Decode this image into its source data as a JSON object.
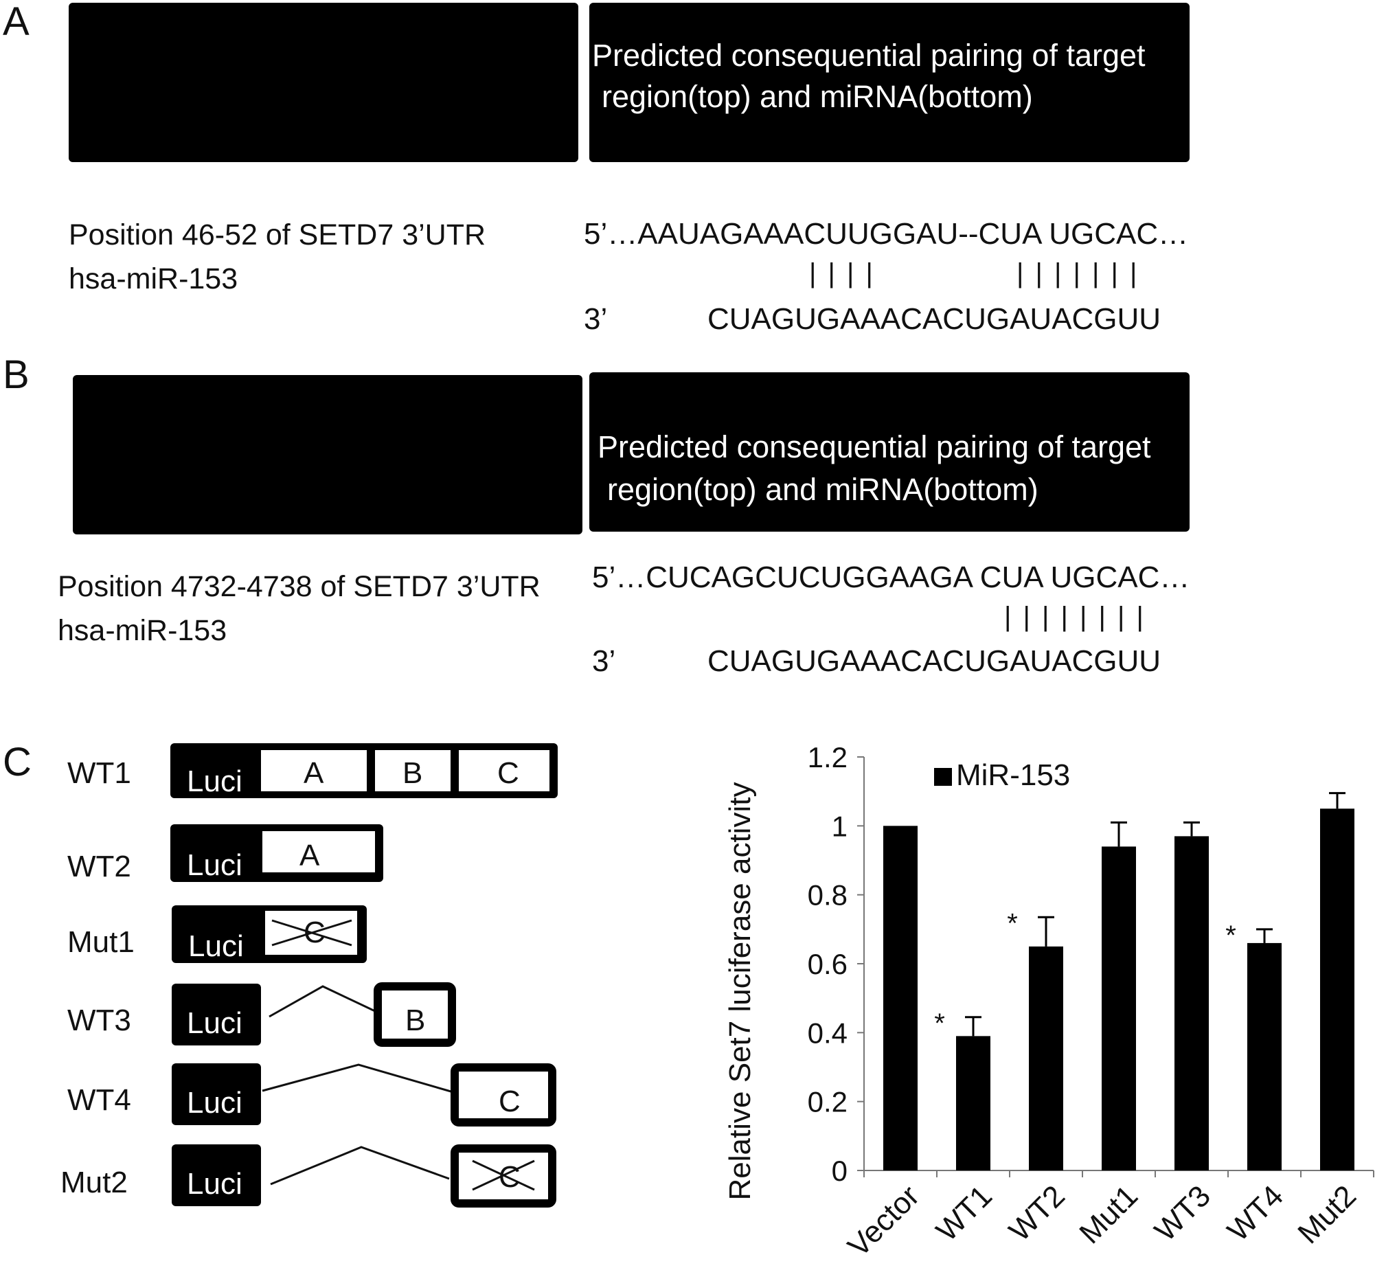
{
  "panelA": {
    "letter": "A",
    "header_line1": "Predicted consequential pairing of target",
    "header_line2": "region(top) and miRNA(bottom)",
    "label1": "Position 46-52  of SETD7  3’UTR",
    "label2": "hsa-miR-153",
    "seq_top": "5’…AAUAGAAACUUGGAU--CUA UGCAC…",
    "pair_marks_1": "| | | |",
    "pair_marks_2": "| | |  |  | | |",
    "seq_bottom_prefix": "3’",
    "seq_bottom": "CUAGUGAAACACUGAUACGUU"
  },
  "panelB": {
    "letter": "B",
    "header_line1": "Predicted consequential pairing of target",
    "header_line2": "region(top) and miRNA(bottom)",
    "label1": "Position 4732-4738  of SETD7  3’UTR",
    "label2": "hsa-miR-153",
    "seq_top": "5’…CUCAGCUCUGGAAGA CUA UGCAC…",
    "pair_marks": "| |  | | | |  |  |",
    "seq_bottom_prefix": "3’",
    "seq_bottom": "CUAGUGAAACACUGAUACGUU"
  },
  "panelC": {
    "letter": "C",
    "constructs": [
      {
        "name": "WT1",
        "luci": "Luci",
        "segments": [
          "A",
          "B",
          "C"
        ]
      },
      {
        "name": "WT2",
        "luci": "Luci",
        "segments": [
          "A"
        ]
      },
      {
        "name": "Mut1",
        "luci": "Luci",
        "segments": [
          "C"
        ],
        "crossed": true
      },
      {
        "name": "WT3",
        "luci": "Luci",
        "segments": [
          "B"
        ]
      },
      {
        "name": "WT4",
        "luci": "Luci",
        "segments": [
          "C"
        ]
      },
      {
        "name": "Mut2",
        "luci": "Luci",
        "segments": [
          "C"
        ],
        "crossed": true
      }
    ]
  },
  "chart_data": {
    "type": "bar",
    "categories": [
      "Vector",
      "WT1",
      "WT2",
      "Mut1",
      "WT3",
      "WT4",
      "Mut2"
    ],
    "series": [
      {
        "name": "MiR-153",
        "values": [
          1.0,
          0.39,
          0.65,
          0.94,
          0.97,
          0.66,
          1.05
        ],
        "errors": [
          0,
          0.055,
          0.085,
          0.07,
          0.04,
          0.04,
          0.045
        ]
      }
    ],
    "significance": [
      "",
      "*",
      "*",
      "",
      "",
      "*",
      ""
    ],
    "ylabel": "Relative  Set7 luciferase  activity",
    "xlabel": "",
    "ylim": [
      0,
      1.2
    ],
    "yticks": [
      "0",
      "0.2",
      "0.4",
      "0.6",
      "0.8",
      "1",
      "1.2"
    ],
    "legend_position": "top-left",
    "bar_color": "#000000",
    "grid": false
  }
}
